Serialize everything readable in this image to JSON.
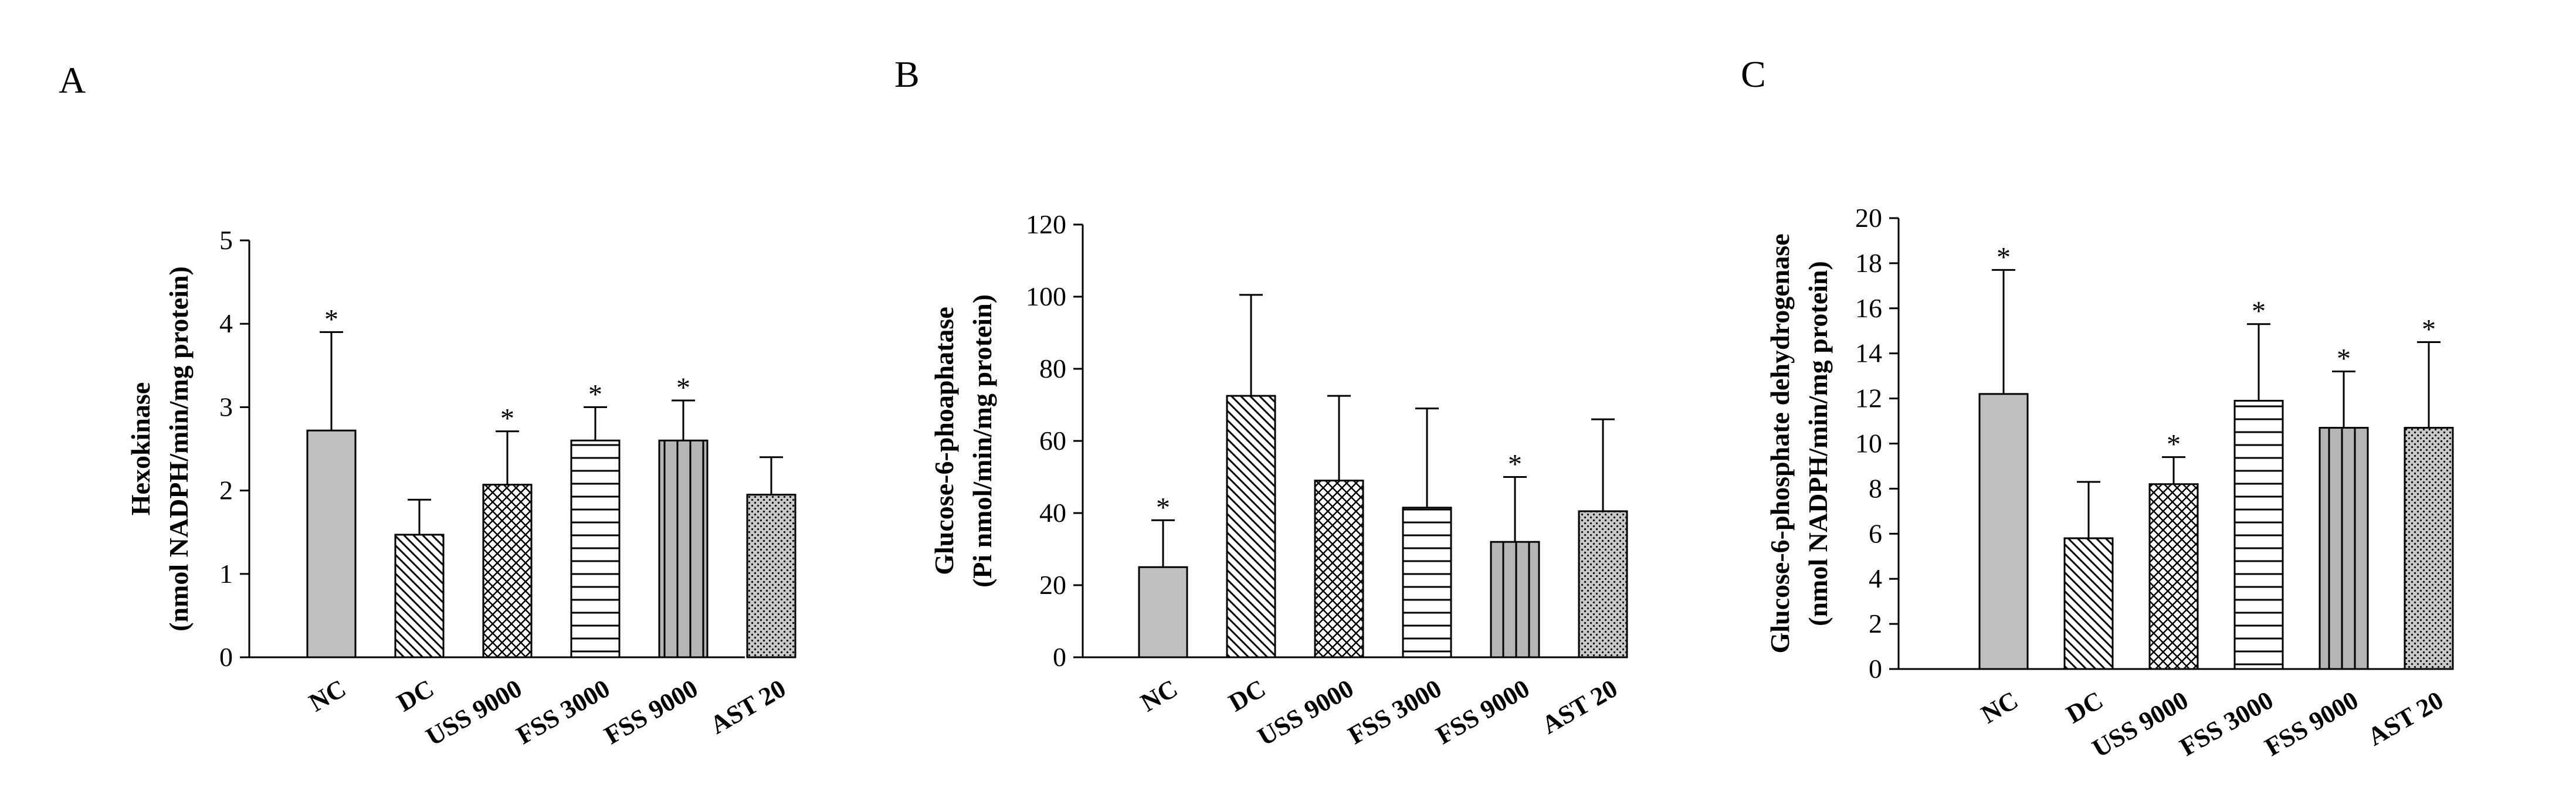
{
  "chart_data": [
    {
      "type": "bar",
      "panel_label": "A",
      "ylabel_lines": [
        "Hexokinase",
        "(nmol NADPH/min/mg  protein)"
      ],
      "ylim": [
        0,
        5
      ],
      "yticks": [
        0,
        1,
        2,
        3,
        4,
        5
      ],
      "categories": [
        "NC",
        "DC",
        "USS 9000",
        "FSS 3000",
        "FSS 9000",
        "AST 20"
      ],
      "values": [
        2.72,
        1.47,
        2.07,
        2.6,
        2.6,
        1.95
      ],
      "errors": [
        1.18,
        0.42,
        0.64,
        0.4,
        0.48,
        0.45
      ],
      "significance": [
        "*",
        "",
        "*",
        "*",
        "*",
        ""
      ],
      "patterns": [
        "solid",
        "diag",
        "cross",
        "hlines",
        "vlines",
        "dots"
      ]
    },
    {
      "type": "bar",
      "panel_label": "B",
      "ylabel_lines": [
        "Glucose-6-phoaphatase",
        "(Pi  nmol/min/mg  protein)"
      ],
      "ylim": [
        0,
        120
      ],
      "yticks": [
        0,
        20,
        40,
        60,
        80,
        100,
        120
      ],
      "categories": [
        "NC",
        "DC",
        "USS 9000",
        "FSS 3000",
        "FSS 9000",
        "AST 20"
      ],
      "values": [
        25,
        72.5,
        49,
        41.5,
        32,
        40.5
      ],
      "errors": [
        13,
        28,
        23.5,
        27.5,
        18,
        25.5
      ],
      "significance": [
        "*",
        "",
        "",
        "",
        "*",
        ""
      ],
      "patterns": [
        "solid",
        "diag",
        "cross",
        "hlines",
        "vlines",
        "dots"
      ]
    },
    {
      "type": "bar",
      "panel_label": "C",
      "ylabel_lines": [
        "Glucose-6-phosphate dehydrogenase",
        "(nmol NADPH/min/mg  protein)"
      ],
      "ylim": [
        0,
        20
      ],
      "yticks": [
        0,
        2,
        4,
        6,
        8,
        10,
        12,
        14,
        16,
        18,
        20
      ],
      "categories": [
        "NC",
        "DC",
        "USS 9000",
        "FSS 3000",
        "FSS 9000",
        "AST 20"
      ],
      "values": [
        12.2,
        5.8,
        8.2,
        11.9,
        10.7,
        10.7
      ],
      "errors": [
        5.5,
        2.5,
        1.2,
        3.4,
        2.5,
        3.8
      ],
      "significance": [
        "*",
        "",
        "*",
        "*",
        "*",
        "*"
      ],
      "patterns": [
        "solid",
        "diag",
        "cross",
        "hlines",
        "vlines",
        "dots"
      ]
    }
  ]
}
